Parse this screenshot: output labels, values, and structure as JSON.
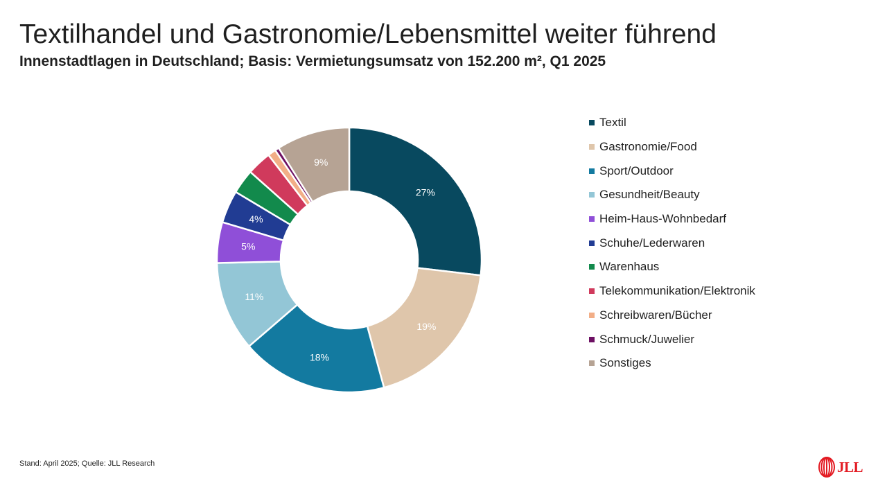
{
  "title": "Textilhandel und Gastronomie/Lebensmittel weiter führend",
  "subtitle": "Innenstadtlagen in Deutschland; Basis: Vermietungsumsatz von 152.200 m², Q1 2025",
  "footer": "Stand: April 2025; Quelle: JLL Research",
  "logo": {
    "text": "JLL",
    "color": "#e31b23"
  },
  "chart_data": {
    "type": "pie",
    "subtype": "donut",
    "legend_position": "right",
    "slices": [
      {
        "label": "Textil",
        "value": 27,
        "data_label": "27%",
        "color": "#08495f"
      },
      {
        "label": "Gastronomie/Food",
        "value": 19,
        "data_label": "19%",
        "color": "#dfc6ab"
      },
      {
        "label": "Sport/Outdoor",
        "value": 18,
        "data_label": "18%",
        "color": "#137aa0"
      },
      {
        "label": "Gesundheit/Beauty",
        "value": 11,
        "data_label": "11%",
        "color": "#93c6d6"
      },
      {
        "label": "Heim-Haus-Wohnbedarf",
        "value": 5,
        "data_label": "5%",
        "color": "#8f4fd8"
      },
      {
        "label": "Schuhe/Lederwaren",
        "value": 4,
        "data_label": "4%",
        "color": "#213c93"
      },
      {
        "label": "Warenhaus",
        "value": 3,
        "data_label": "",
        "color": "#128a4c"
      },
      {
        "label": "Telekommunikation/Elektronik",
        "value": 3,
        "data_label": "",
        "color": "#d03a5c"
      },
      {
        "label": "Schreibwaren/Bücher",
        "value": 1,
        "data_label": "",
        "color": "#f2ae87"
      },
      {
        "label": "Schmuck/Juwelier",
        "value": 0.5,
        "data_label": "",
        "color": "#6d1063"
      },
      {
        "label": "Sonstiges",
        "value": 9,
        "data_label": "9%",
        "color": "#b6a394"
      }
    ]
  }
}
